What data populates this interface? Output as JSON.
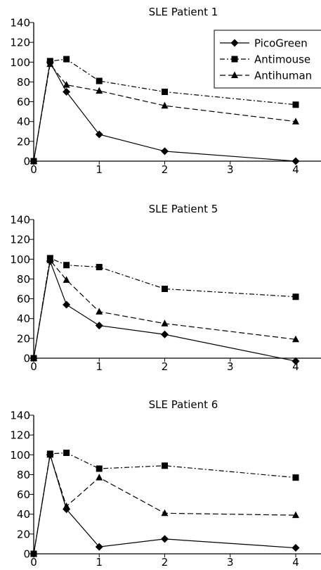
{
  "chart_data": [
    {
      "type": "line",
      "title": "SLE Patient 1",
      "xlabel": "",
      "ylabel": "",
      "xlim": [
        0,
        4
      ],
      "ylim": [
        0,
        140
      ],
      "x_ticks": [
        "0",
        "1",
        "2",
        "3",
        "4"
      ],
      "y_ticks": [
        "0",
        "20",
        "40",
        "60",
        "80",
        "100",
        "120",
        "140"
      ],
      "grid": false,
      "legend": {
        "placement": "top-right",
        "entries": [
          "PicoGreen",
          "Antimouse",
          "Antihuman"
        ]
      },
      "series": [
        {
          "name": "PicoGreen",
          "marker": "diamond",
          "line_style": "solid",
          "x": [
            0,
            0.25,
            0.5,
            1,
            2,
            4
          ],
          "y": [
            0,
            100,
            70,
            27,
            10,
            0
          ]
        },
        {
          "name": "Antimouse",
          "marker": "square",
          "line_style": "dashdot",
          "x": [
            0,
            0.25,
            0.5,
            1,
            2,
            4
          ],
          "y": [
            0,
            101,
            103,
            81,
            70,
            57
          ]
        },
        {
          "name": "Antihuman",
          "marker": "triangle",
          "line_style": "dashed",
          "x": [
            0,
            0.25,
            0.5,
            1,
            2,
            4
          ],
          "y": [
            0,
            98,
            77,
            71,
            56,
            40
          ]
        }
      ]
    },
    {
      "type": "line",
      "title": "SLE Patient 5",
      "xlabel": "",
      "ylabel": "",
      "xlim": [
        0,
        4
      ],
      "ylim": [
        0,
        140
      ],
      "x_ticks": [
        "0",
        "1",
        "2",
        "3",
        "4"
      ],
      "y_ticks": [
        "0",
        "20",
        "40",
        "60",
        "80",
        "100",
        "120",
        "140"
      ],
      "grid": false,
      "series": [
        {
          "name": "PicoGreen",
          "marker": "diamond",
          "line_style": "solid",
          "x": [
            0,
            0.25,
            0.5,
            1,
            2,
            4
          ],
          "y": [
            0,
            98,
            54,
            33,
            24,
            -3
          ]
        },
        {
          "name": "Antimouse",
          "marker": "square",
          "line_style": "dashdot",
          "x": [
            0,
            0.25,
            0.5,
            1,
            2,
            4
          ],
          "y": [
            0,
            101,
            94,
            92,
            70,
            62
          ]
        },
        {
          "name": "Antihuman",
          "marker": "triangle",
          "line_style": "dashed",
          "x": [
            0,
            0.25,
            0.5,
            1,
            2,
            4
          ],
          "y": [
            0,
            99,
            79,
            47,
            35,
            19
          ]
        }
      ]
    },
    {
      "type": "line",
      "title": "SLE Patient 6",
      "xlabel": "",
      "ylabel": "",
      "xlim": [
        0,
        4
      ],
      "ylim": [
        0,
        140
      ],
      "x_ticks": [
        "0",
        "1",
        "2",
        "3",
        "4"
      ],
      "y_ticks": [
        "0",
        "20",
        "40",
        "60",
        "80",
        "100",
        "120",
        "140"
      ],
      "grid": false,
      "series": [
        {
          "name": "PicoGreen",
          "marker": "diamond",
          "line_style": "solid",
          "x": [
            0,
            0.25,
            0.5,
            1,
            2,
            4
          ],
          "y": [
            0,
            100,
            45,
            7,
            15,
            6
          ]
        },
        {
          "name": "Antimouse",
          "marker": "square",
          "line_style": "dashdot",
          "x": [
            0,
            0.25,
            0.5,
            1,
            2,
            4
          ],
          "y": [
            0,
            101,
            102,
            86,
            89,
            77
          ]
        },
        {
          "name": "Antihuman",
          "marker": "triangle",
          "line_style": "dashed",
          "x": [
            0,
            0.25,
            0.5,
            1,
            2,
            4
          ],
          "y": [
            0,
            100,
            48,
            77,
            41,
            39
          ]
        }
      ]
    }
  ]
}
